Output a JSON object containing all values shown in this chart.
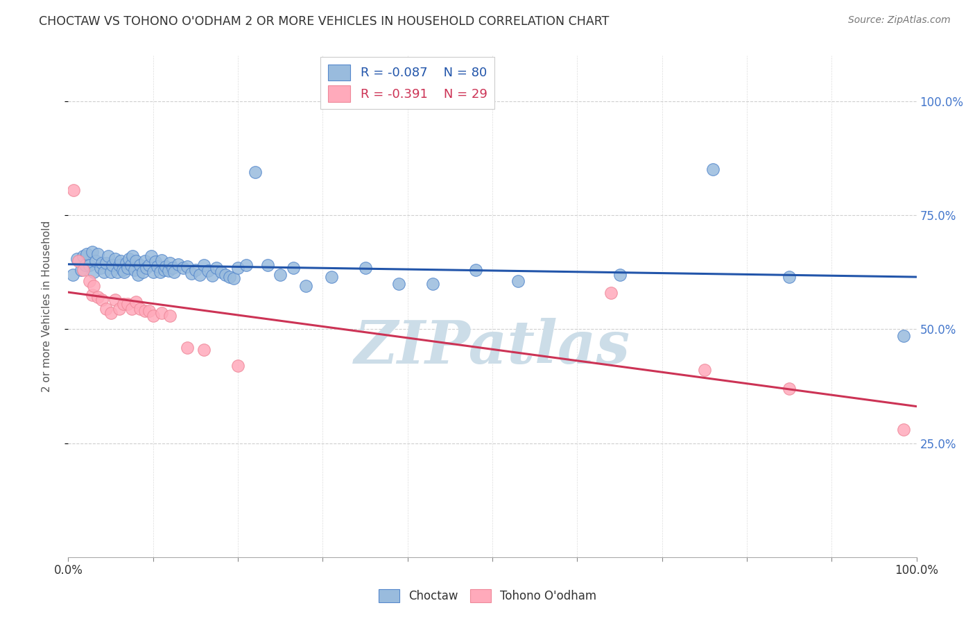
{
  "title": "CHOCTAW VS TOHONO O'ODHAM 2 OR MORE VEHICLES IN HOUSEHOLD CORRELATION CHART",
  "source": "Source: ZipAtlas.com",
  "ylabel": "2 or more Vehicles in Household",
  "xlim": [
    0.0,
    1.0
  ],
  "ylim": [
    0.0,
    1.1
  ],
  "yticks_right": [
    0.25,
    0.5,
    0.75,
    1.0
  ],
  "ytick_labels_right": [
    "25.0%",
    "50.0%",
    "75.0%",
    "100.0%"
  ],
  "choctaw_R": -0.087,
  "choctaw_N": 80,
  "tohono_R": -0.391,
  "tohono_N": 29,
  "choctaw_color": "#99BBDD",
  "tohono_color": "#FFAABB",
  "choctaw_edge_color": "#5588CC",
  "tohono_edge_color": "#EE8899",
  "choctaw_line_color": "#2255AA",
  "tohono_line_color": "#CC3355",
  "background_color": "#FFFFFF",
  "grid_color": "#BBBBBB",
  "title_color": "#333333",
  "watermark_color": "#CCDDE8",
  "legend_label_choctaw": "Choctaw",
  "legend_label_tohono": "Tohono O'odham",
  "choctaw_x": [
    0.005,
    0.01,
    0.015,
    0.018,
    0.02,
    0.022,
    0.025,
    0.028,
    0.03,
    0.032,
    0.035,
    0.038,
    0.04,
    0.042,
    0.045,
    0.047,
    0.05,
    0.052,
    0.055,
    0.058,
    0.06,
    0.062,
    0.064,
    0.066,
    0.068,
    0.07,
    0.072,
    0.074,
    0.076,
    0.078,
    0.08,
    0.082,
    0.085,
    0.088,
    0.09,
    0.092,
    0.095,
    0.098,
    0.1,
    0.103,
    0.105,
    0.108,
    0.11,
    0.113,
    0.115,
    0.118,
    0.12,
    0.123,
    0.125,
    0.13,
    0.135,
    0.14,
    0.145,
    0.15,
    0.155,
    0.16,
    0.165,
    0.17,
    0.175,
    0.18,
    0.185,
    0.19,
    0.195,
    0.2,
    0.21,
    0.22,
    0.235,
    0.25,
    0.265,
    0.28,
    0.31,
    0.35,
    0.39,
    0.43,
    0.48,
    0.53,
    0.65,
    0.76,
    0.85,
    0.985
  ],
  "choctaw_y": [
    0.62,
    0.655,
    0.63,
    0.66,
    0.64,
    0.665,
    0.64,
    0.67,
    0.625,
    0.65,
    0.665,
    0.635,
    0.645,
    0.625,
    0.645,
    0.66,
    0.625,
    0.64,
    0.655,
    0.625,
    0.64,
    0.65,
    0.63,
    0.625,
    0.645,
    0.635,
    0.655,
    0.64,
    0.66,
    0.63,
    0.65,
    0.62,
    0.64,
    0.625,
    0.65,
    0.635,
    0.64,
    0.66,
    0.625,
    0.648,
    0.638,
    0.625,
    0.652,
    0.63,
    0.638,
    0.628,
    0.645,
    0.635,
    0.625,
    0.642,
    0.635,
    0.638,
    0.622,
    0.63,
    0.62,
    0.64,
    0.628,
    0.618,
    0.635,
    0.625,
    0.62,
    0.615,
    0.612,
    0.635,
    0.64,
    0.845,
    0.64,
    0.62,
    0.635,
    0.595,
    0.615,
    0.635,
    0.6,
    0.6,
    0.63,
    0.605,
    0.62,
    0.85,
    0.615,
    0.485
  ],
  "tohono_x": [
    0.006,
    0.012,
    0.018,
    0.025,
    0.028,
    0.03,
    0.035,
    0.04,
    0.045,
    0.05,
    0.055,
    0.06,
    0.065,
    0.07,
    0.075,
    0.08,
    0.085,
    0.09,
    0.095,
    0.1,
    0.11,
    0.12,
    0.14,
    0.16,
    0.2,
    0.64,
    0.75,
    0.85,
    0.985
  ],
  "tohono_y": [
    0.805,
    0.65,
    0.63,
    0.605,
    0.575,
    0.595,
    0.57,
    0.565,
    0.545,
    0.535,
    0.565,
    0.545,
    0.555,
    0.555,
    0.545,
    0.56,
    0.545,
    0.54,
    0.54,
    0.53,
    0.535,
    0.53,
    0.46,
    0.455,
    0.42,
    0.58,
    0.41,
    0.37,
    0.28
  ]
}
